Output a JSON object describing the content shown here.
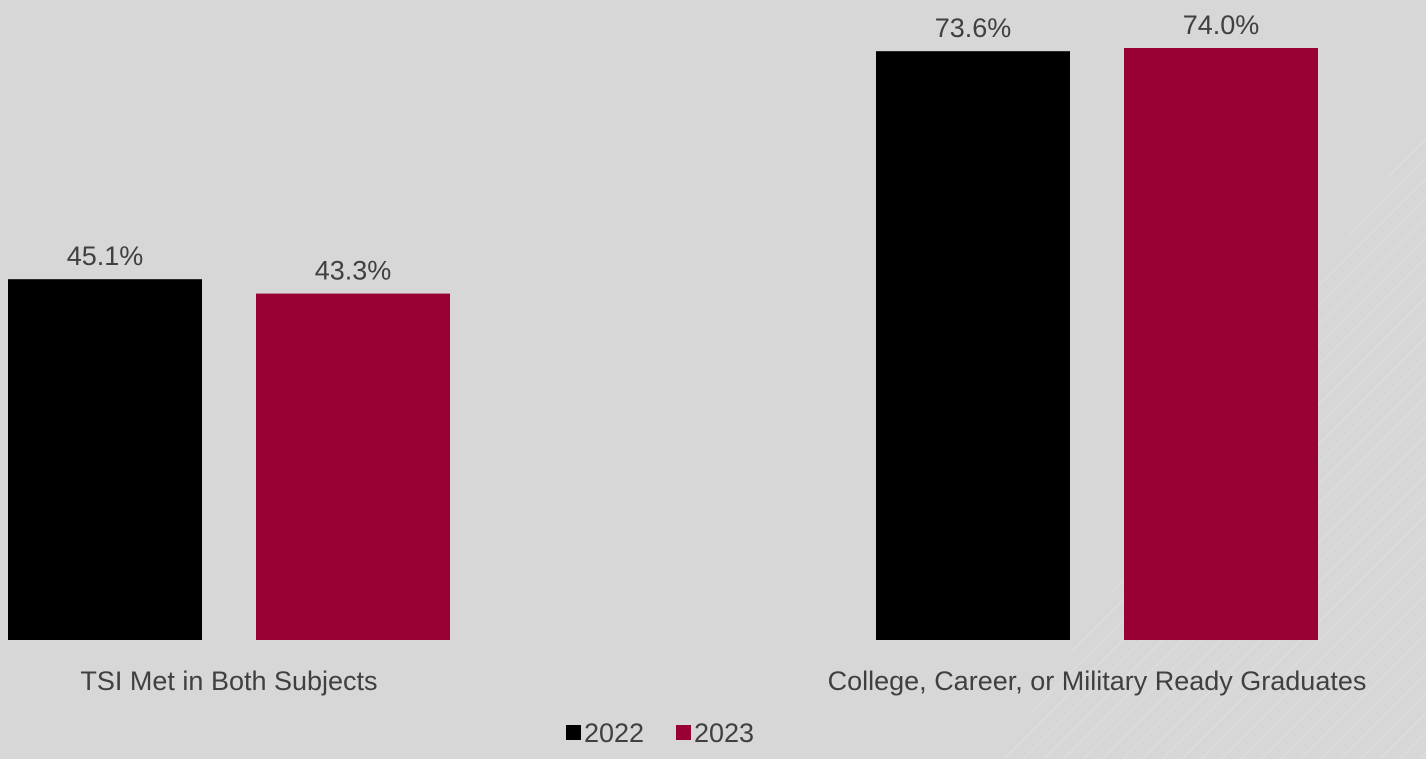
{
  "chart_data": {
    "type": "bar",
    "title": "",
    "xlabel": "",
    "ylabel": "",
    "ylim": [
      0,
      80
    ],
    "grid": false,
    "legend_position": "bottom",
    "categories": [
      "TSI Met in Both Subjects",
      "College, Career, or Military Ready Graduates"
    ],
    "series": [
      {
        "name": "2022",
        "color": "#000000",
        "values": [
          45.1,
          73.6
        ],
        "labels": [
          "45.1%",
          "73.6%"
        ]
      },
      {
        "name": "2023",
        "color": "#990033",
        "values": [
          43.3,
          74.0
        ],
        "labels": [
          "43.3%",
          "74.0%"
        ]
      }
    ]
  },
  "colors": {
    "background": "#d6d7d6",
    "text": "#404040"
  }
}
